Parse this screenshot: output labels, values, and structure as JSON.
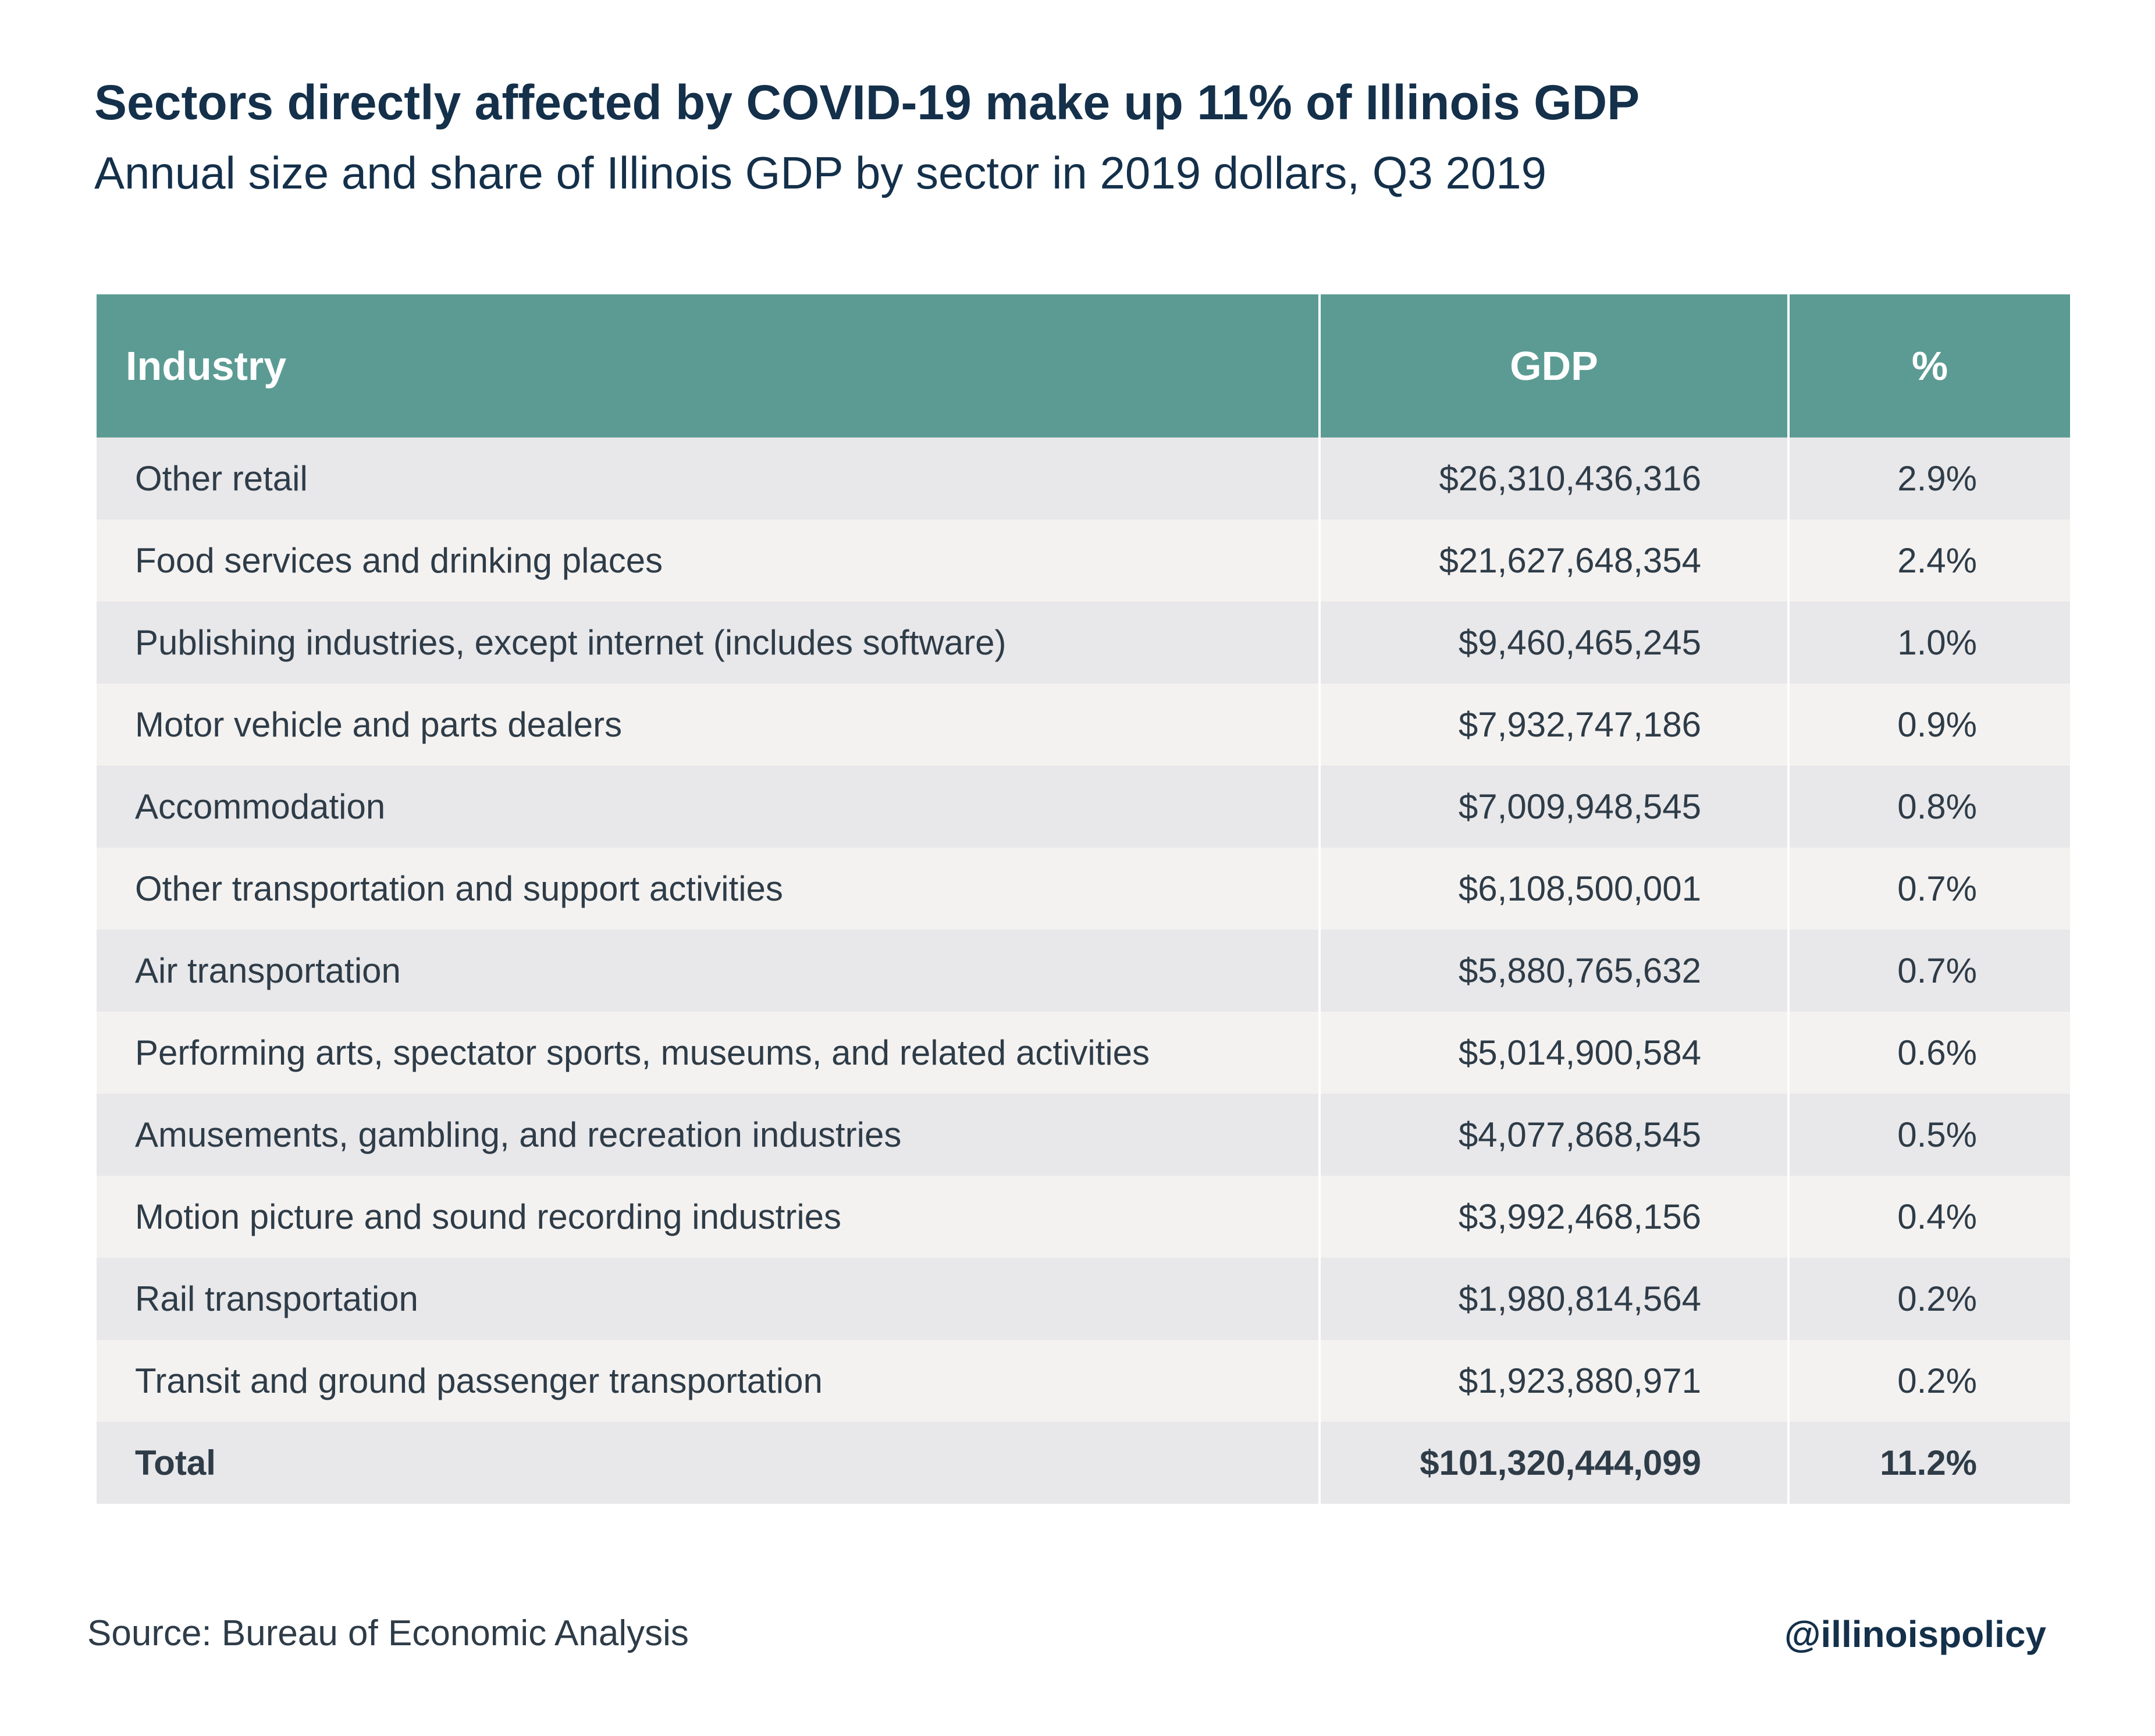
{
  "title": "Sectors directly affected by COVID-19 make up 11% of Illinois GDP",
  "subtitle": "Annual size and share of Illinois GDP by sector in 2019 dollars, Q3 2019",
  "colors": {
    "header_bg": "#5b9b93",
    "header_text": "#ffffff",
    "row_odd": "#e8e7e9",
    "row_even": "#f4f2f0",
    "title_text": "#14304a"
  },
  "chart_data": {
    "type": "table",
    "columns": [
      "Industry",
      "GDP",
      "%"
    ],
    "rows": [
      [
        "Other retail",
        "$26,310,436,316",
        "2.9%"
      ],
      [
        "Food services and drinking places",
        "$21,627,648,354",
        "2.4%"
      ],
      [
        "Publishing industries, except internet (includes software)",
        "$9,460,465,245",
        "1.0%"
      ],
      [
        "Motor vehicle and parts dealers",
        "$7,932,747,186",
        "0.9%"
      ],
      [
        "Accommodation",
        "$7,009,948,545",
        "0.8%"
      ],
      [
        "Other transportation and support activities",
        "$6,108,500,001",
        "0.7%"
      ],
      [
        "Air transportation",
        "$5,880,765,632",
        "0.7%"
      ],
      [
        "Performing arts, spectator sports, museums, and related activities",
        "$5,014,900,584",
        "0.6%"
      ],
      [
        "Amusements, gambling, and recreation industries",
        "$4,077,868,545",
        "0.5%"
      ],
      [
        "Motion picture and sound recording industries",
        "$3,992,468,156",
        "0.4%"
      ],
      [
        "Rail transportation",
        "$1,980,814,564",
        "0.2%"
      ],
      [
        "Transit and ground passenger transportation",
        "$1,923,880,971",
        "0.2%"
      ]
    ],
    "total": [
      "Total",
      "$101,320,444,099",
      "11.2%"
    ]
  },
  "footer": {
    "source": "Source: Bureau of Economic Analysis",
    "handle": "@illinoispolicy"
  }
}
